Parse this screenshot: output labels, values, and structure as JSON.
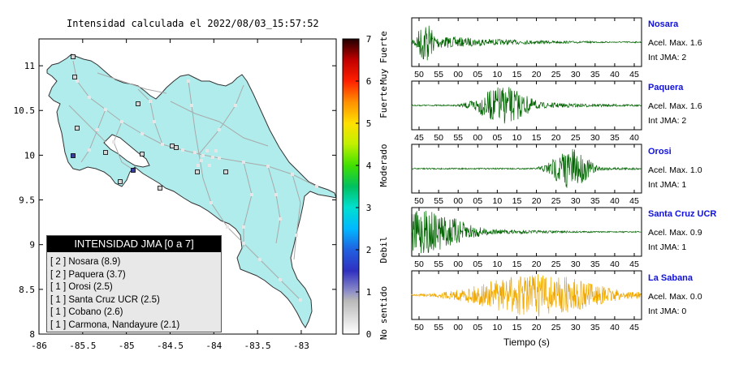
{
  "map": {
    "title": "Intensidad calculada el 2022/08/03_15:57:52",
    "x_ticks": [
      "-86",
      "-85.5",
      "-85",
      "-84.5",
      "-84",
      "-83.5",
      "-83"
    ],
    "y_ticks": [
      "11",
      "10.5",
      "10",
      "9.5",
      "9",
      "8.5",
      "8"
    ],
    "colors": {
      "land": "#b0ecec",
      "water": "#ffffff",
      "roads": "#a9a9a9",
      "towns": "#e6e6e6"
    }
  },
  "colorbar": {
    "ticks": [
      "0",
      "1",
      "2",
      "3",
      "4",
      "5",
      "6",
      "7"
    ],
    "labels": [
      "No sentido",
      "Debil",
      "Moderado",
      "Fuerte",
      "Muy Fuerte"
    ]
  },
  "legend": {
    "title": "INTENSIDAD JMA [0 a 7]",
    "items": [
      "[ 2 ]  Nosara (8.9)",
      "[ 2 ]  Paquera (3.7)",
      "[ 1 ]  Orosi (2.5)",
      "[ 1 ]  Santa Cruz UCR (2.5)",
      "[ 1 ]  Cobano (2.6)",
      "[ 1 ]  Carmona, Nandayure (2.1)"
    ]
  },
  "stations": [
    {
      "name": "Nosara",
      "acel": "Acel. Max. 1.6",
      "jma": "Int JMA: 2",
      "color": "#006400",
      "ticks": [
        "50",
        "55",
        "00",
        "05",
        "10",
        "15",
        "20",
        "25",
        "30",
        "35",
        "40",
        "45"
      ]
    },
    {
      "name": "Paquera",
      "acel": "Acel. Max. 1.6",
      "jma": "Int JMA: 2",
      "color": "#006400",
      "ticks": [
        "45",
        "50",
        "55",
        "00",
        "05",
        "10",
        "15",
        "20",
        "25",
        "30",
        "35",
        "40"
      ]
    },
    {
      "name": "Orosi",
      "acel": "Acel. Max. 1.0",
      "jma": "Int JMA: 1",
      "color": "#006400",
      "ticks": [
        "50",
        "55",
        "00",
        "05",
        "10",
        "15",
        "20",
        "25",
        "30",
        "35",
        "40",
        "45"
      ]
    },
    {
      "name": "Santa Cruz UCR",
      "acel": "Acel. Max. 0.9",
      "jma": "Int JMA: 1",
      "color": "#006400",
      "ticks": [
        "50",
        "55",
        "00",
        "05",
        "10",
        "15",
        "20",
        "25",
        "30",
        "35",
        "40",
        "45"
      ]
    },
    {
      "name": "La Sabana",
      "acel": "Acel. Max. 0.0",
      "jma": "Int JMA: 0",
      "color": "#f0a800",
      "ticks": [
        "50",
        "55",
        "00",
        "05",
        "10",
        "15",
        "20",
        "25",
        "30",
        "35",
        "40",
        "45"
      ]
    }
  ],
  "x_axis_label": "Tiempo (s)"
}
